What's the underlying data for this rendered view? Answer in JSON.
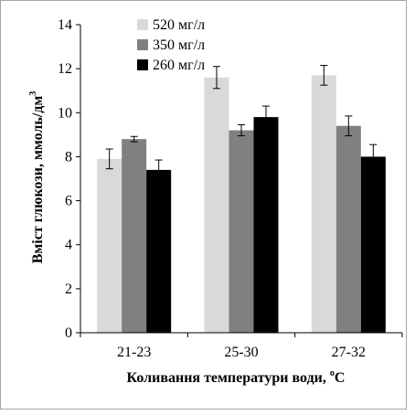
{
  "chart_data": {
    "type": "bar",
    "title": "",
    "xlabel": "Коливання температури води, ",
    "xlabel_sup": "o",
    "xlabel_suffix": "С",
    "ylabel": "Вміст глюкози, ммоль/дм",
    "ylabel_sup": "3",
    "ylim": [
      0,
      14
    ],
    "yticks": [
      0,
      2,
      4,
      6,
      8,
      10,
      12,
      14
    ],
    "categories": [
      "21-23",
      "25-30",
      "27-32"
    ],
    "legend_position": "top-left",
    "grid": false,
    "series": [
      {
        "name": "520 мг/л",
        "color": "#d9d9d9",
        "values": [
          7.9,
          11.6,
          11.7
        ],
        "errors": [
          0.45,
          0.5,
          0.45
        ]
      },
      {
        "name": "350 мг/л",
        "color": "#808080",
        "values": [
          8.8,
          9.2,
          9.4
        ],
        "errors": [
          0.12,
          0.25,
          0.45
        ]
      },
      {
        "name": "260 мг/л",
        "color": "#000000",
        "values": [
          7.4,
          9.8,
          8.0
        ],
        "errors": [
          0.45,
          0.5,
          0.55
        ]
      }
    ]
  }
}
